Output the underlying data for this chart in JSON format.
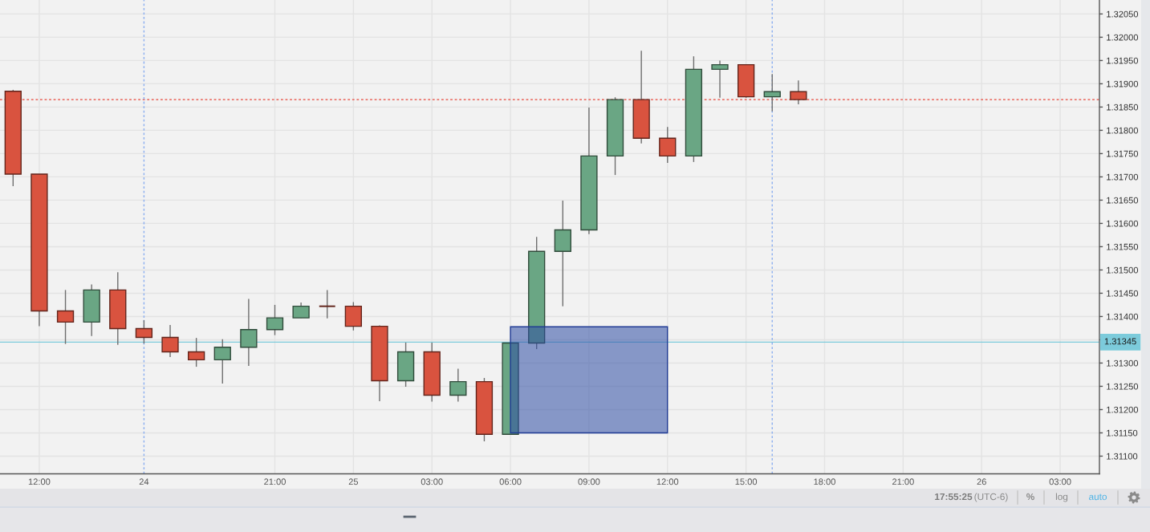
{
  "chart_data": {
    "type": "candlestick",
    "categories": [
      null,
      "12:00",
      null,
      null,
      null,
      "24",
      null,
      null,
      null,
      null,
      "21:00",
      null,
      null,
      "25",
      null,
      null,
      "03:00",
      null,
      null,
      "06:00",
      null,
      null,
      "09:00",
      null,
      null,
      "12:00",
      null,
      null,
      "15:00",
      null,
      null,
      "18:00",
      null,
      null,
      "21:00",
      null,
      null,
      "26",
      null,
      null,
      "03:00",
      null
    ],
    "ohlc": [
      [
        1.31884,
        1.31887,
        1.3168,
        1.31706
      ],
      [
        1.31706,
        1.31706,
        1.31379,
        1.31412
      ],
      [
        1.31412,
        1.31457,
        1.31341,
        1.31388
      ],
      [
        1.31388,
        1.31469,
        1.31358,
        1.31457
      ],
      [
        1.31457,
        1.31495,
        1.31339,
        1.31374
      ],
      [
        1.31374,
        1.31392,
        1.31342,
        1.31355
      ],
      [
        1.31355,
        1.31382,
        1.31313,
        1.31324
      ],
      [
        1.31324,
        1.31354,
        1.31292,
        1.31307
      ],
      [
        1.31307,
        1.31351,
        1.31256,
        1.31334
      ],
      [
        1.31334,
        1.31438,
        1.31294,
        1.31372
      ],
      [
        1.31372,
        1.31425,
        1.3136,
        1.31397
      ],
      [
        1.31397,
        1.3143,
        1.31397,
        1.31422
      ],
      [
        1.31422,
        1.31457,
        1.31396,
        1.31422
      ],
      [
        1.31422,
        1.31431,
        1.3137,
        1.31379
      ],
      [
        1.31379,
        1.31381,
        1.31218,
        1.31262
      ],
      [
        1.31262,
        1.31344,
        1.31249,
        1.31324
      ],
      [
        1.31324,
        1.31344,
        1.31217,
        1.31231
      ],
      [
        1.31231,
        1.31288,
        1.31217,
        1.3126
      ],
      [
        1.3126,
        1.31268,
        1.31132,
        1.31147
      ],
      [
        1.31147,
        1.31343,
        1.31147,
        1.31343
      ],
      [
        1.31343,
        1.31571,
        1.3133,
        1.3154
      ],
      [
        1.3154,
        1.31649,
        1.31422,
        1.31586
      ],
      [
        1.31586,
        1.31849,
        1.31577,
        1.31745
      ],
      [
        1.31745,
        1.31871,
        1.31704,
        1.31866
      ],
      [
        1.31866,
        1.31971,
        1.31772,
        1.31783
      ],
      [
        1.31783,
        1.31807,
        1.3173,
        1.31745
      ],
      [
        1.31745,
        1.31959,
        1.31732,
        1.31931
      ],
      [
        1.31931,
        1.3195,
        1.3187,
        1.31941
      ],
      [
        1.31941,
        1.31941,
        1.3187,
        1.31872
      ],
      [
        1.31872,
        1.31921,
        1.31841,
        1.31883
      ],
      [
        1.31883,
        1.31907,
        1.31856,
        1.31866
      ],
      null,
      null,
      null,
      null,
      null,
      null,
      null,
      null,
      null,
      null,
      null
    ],
    "colors": [
      "#d9533f",
      "#d9533f",
      "#d9533f",
      "#6aa684",
      "#d9533f",
      "#d9533f",
      "#d9533f",
      "#d9533f",
      "#6aa684",
      "#6aa684",
      "#6aa684",
      "#6aa684",
      "#62251c",
      "#d9533f",
      "#d9533f",
      "#6aa684",
      "#d9533f",
      "#6aa684",
      "#d9533f",
      "#6aa684",
      "#6aa684",
      "#6aa684",
      "#6aa684",
      "#6aa684",
      "#d9533f",
      "#d9533f",
      "#6aa684",
      "#6aa684",
      "#d9533f",
      "#6aa684",
      "#d9533f",
      null,
      null,
      null,
      null,
      null,
      null,
      null,
      null,
      null,
      null,
      null
    ],
    "ylim": [
      1.31062,
      1.3208
    ],
    "yticks": [
      {
        "value": 1.311,
        "label": "1.31100"
      },
      {
        "value": 1.3115,
        "label": "1.31150"
      },
      {
        "value": 1.312,
        "label": "1.31200"
      },
      {
        "value": 1.3125,
        "label": "1.31250"
      },
      {
        "value": 1.313,
        "label": "1.31300"
      },
      {
        "value": 1.3135,
        "label": null
      },
      {
        "value": 1.314,
        "label": "1.31400"
      },
      {
        "value": 1.3145,
        "label": "1.31450"
      },
      {
        "value": 1.315,
        "label": "1.31500"
      },
      {
        "value": 1.3155,
        "label": "1.31550"
      },
      {
        "value": 1.316,
        "label": "1.31600"
      },
      {
        "value": 1.3165,
        "label": "1.31650"
      },
      {
        "value": 1.317,
        "label": "1.31700"
      },
      {
        "value": 1.3175,
        "label": "1.31750"
      },
      {
        "value": 1.318,
        "label": "1.31800"
      },
      {
        "value": 1.3185,
        "label": "1.31850"
      },
      {
        "value": 1.319,
        "label": "1.31900"
      },
      {
        "value": 1.3195,
        "label": "1.31950"
      },
      {
        "value": 1.32,
        "label": "1.32000"
      },
      {
        "value": 1.3205,
        "label": "1.32050"
      }
    ],
    "grid": true,
    "ref_lines": [
      {
        "axis": "y",
        "value": 1.31345,
        "label": "1.31345",
        "color": "#7ccbdb",
        "line_style": "solid"
      },
      {
        "axis": "y",
        "value": 1.31866,
        "color": "#e8463a",
        "line_style": "dotted"
      }
    ],
    "annotations": [
      "17:55:25",
      "(UTC-6)",
      "%",
      "log",
      "auto"
    ]
  }
}
